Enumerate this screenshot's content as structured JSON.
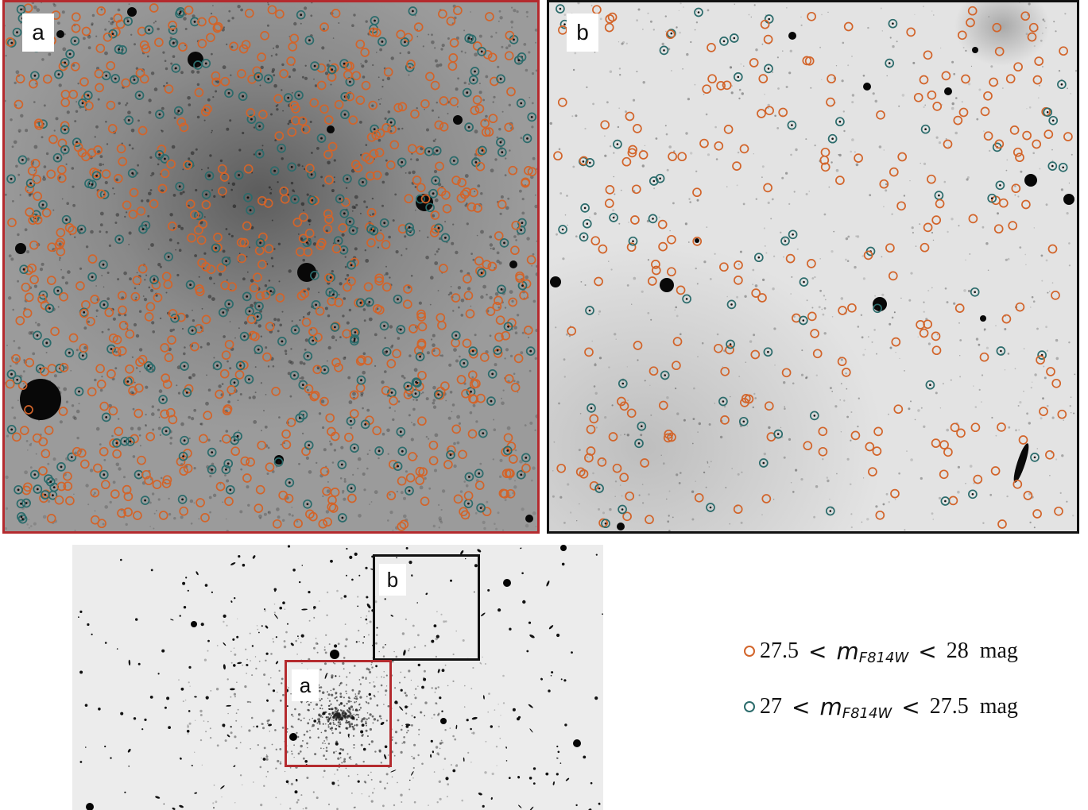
{
  "panels": {
    "a": {
      "tag": "a",
      "frame_color": "#b42a2e"
    },
    "b": {
      "tag": "b",
      "frame_color": "#111111"
    }
  },
  "overview": {
    "box_a_tag": "a",
    "box_b_tag": "b"
  },
  "legend": {
    "rows": [
      {
        "low": "27.5",
        "high": "28",
        "unit": "mag",
        "color": "#d2642a",
        "marker": "orange-circle"
      },
      {
        "low": "27",
        "high": "27.5",
        "unit": "mag",
        "color": "#2b6b6b",
        "marker": "teal-circle"
      }
    ],
    "lt_symbol": "<",
    "var_main": "m",
    "var_sub": "F814W"
  },
  "colors": {
    "orange_marker": "#d2642a",
    "teal_marker": "#2b6b6b"
  }
}
